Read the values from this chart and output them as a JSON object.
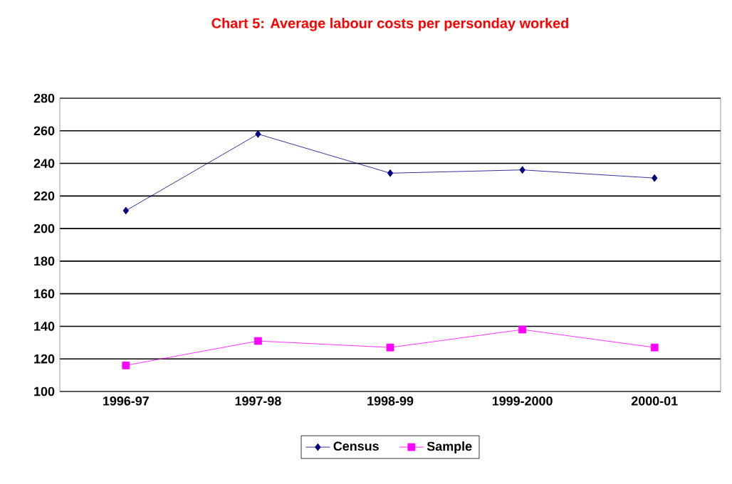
{
  "chart_data": {
    "type": "line",
    "title": "Chart 5: Average labour costs per personday worked",
    "categories": [
      "1996-97",
      "1997-98",
      "1998-99",
      "1999-2000",
      "2000-01"
    ],
    "series": [
      {
        "name": "Census",
        "color": "#000080",
        "marker": "diamond",
        "values": [
          211,
          258,
          234,
          236,
          231
        ]
      },
      {
        "name": "Sample",
        "color": "#ff00ff",
        "marker": "square",
        "values": [
          116,
          131,
          127,
          138,
          127
        ]
      }
    ],
    "ylim": [
      100,
      280
    ],
    "yticks": [
      100,
      120,
      140,
      160,
      180,
      200,
      220,
      240,
      260,
      280
    ],
    "grid": "y",
    "legend": "bottom",
    "line_style": "solid"
  }
}
